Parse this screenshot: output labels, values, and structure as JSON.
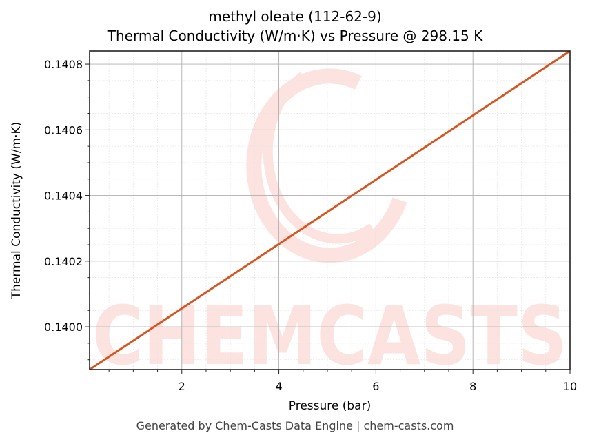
{
  "chart": {
    "title_line1": "methyl oleate (112-62-9)",
    "title_line2": "Thermal Conductivity (W/m·K) vs Pressure @ 298.15 K",
    "footer": "Generated by Chem-Casts Data Engine | chem-casts.com",
    "watermark": "CHEMCASTS",
    "line_color": "#d9541e",
    "watermark_color": "#fde3e0"
  },
  "chart_data": {
    "type": "line",
    "title": "methyl oleate (112-62-9) Thermal Conductivity (W/m·K) vs Pressure @ 298.15 K",
    "xlabel": "Pressure (bar)",
    "ylabel": "Thermal Conductivity (W/m·K)",
    "xlim": [
      0.1,
      10
    ],
    "ylim": [
      0.13987,
      0.14084
    ],
    "xticks": [
      2,
      4,
      6,
      8,
      10
    ],
    "yticks": [
      0.14,
      0.1402,
      0.1404,
      0.1406,
      0.1408
    ],
    "xtick_labels": [
      "2",
      "4",
      "6",
      "8",
      "10"
    ],
    "ytick_labels": [
      "0.1400",
      "0.1402",
      "0.1404",
      "0.1406",
      "0.1408"
    ],
    "grid": true,
    "legend": null,
    "series": [
      {
        "name": "Thermal Conductivity",
        "x": [
          0.1,
          1,
          2,
          3,
          4,
          5,
          6,
          7,
          8,
          9,
          10
        ],
        "y": [
          0.13987,
          0.139958,
          0.140056,
          0.140154,
          0.140252,
          0.14035,
          0.140448,
          0.140546,
          0.140644,
          0.140742,
          0.14084
        ]
      }
    ]
  }
}
